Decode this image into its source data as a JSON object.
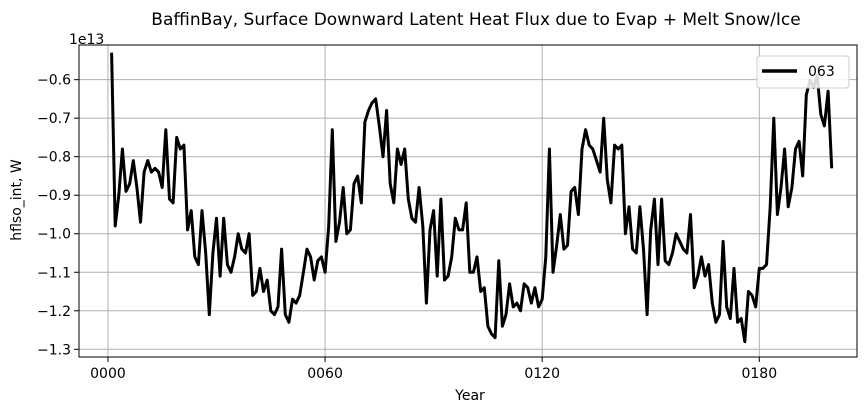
{
  "chart_data": {
    "type": "line",
    "title": "BaffinBay, Surface Downward Latent Heat Flux due to Evap + Melt Snow/Ice",
    "xlabel": "Year",
    "ylabel": "hflso_int, W",
    "y_offset_label": "1e13",
    "xlim": [
      -8,
      207
    ],
    "ylim": [
      -1.32,
      -0.51
    ],
    "x_ticks": [
      0,
      60,
      120,
      180
    ],
    "x_tick_labels": [
      "0000",
      "0060",
      "0120",
      "0180"
    ],
    "y_ticks": [
      -1.3,
      -1.2,
      -1.1,
      -1.0,
      -0.9,
      -0.8,
      -0.7,
      -0.6
    ],
    "y_tick_labels": [
      "−1.3",
      "−1.2",
      "−1.1",
      "−1.0",
      "−0.9",
      "−0.8",
      "−0.7",
      "−0.6"
    ],
    "grid": true,
    "legend_position": "top-right",
    "series": [
      {
        "name": "063",
        "color": "#000000",
        "x": [
          1,
          2,
          3,
          4,
          5,
          6,
          7,
          8,
          9,
          10,
          11,
          12,
          13,
          14,
          15,
          16,
          17,
          18,
          19,
          20,
          21,
          22,
          23,
          24,
          25,
          26,
          27,
          28,
          29,
          30,
          31,
          32,
          33,
          34,
          35,
          36,
          37,
          38,
          39,
          40,
          41,
          42,
          43,
          44,
          45,
          46,
          47,
          48,
          49,
          50,
          51,
          52,
          53,
          54,
          55,
          56,
          57,
          58,
          59,
          60,
          61,
          62,
          63,
          64,
          65,
          66,
          67,
          68,
          69,
          70,
          71,
          72,
          73,
          74,
          75,
          76,
          77,
          78,
          79,
          80,
          81,
          82,
          83,
          84,
          85,
          86,
          87,
          88,
          89,
          90,
          91,
          92,
          93,
          94,
          95,
          96,
          97,
          98,
          99,
          100,
          101,
          102,
          103,
          104,
          105,
          106,
          107,
          108,
          109,
          110,
          111,
          112,
          113,
          114,
          115,
          116,
          117,
          118,
          119,
          120,
          121,
          122,
          123,
          124,
          125,
          126,
          127,
          128,
          129,
          130,
          131,
          132,
          133,
          134,
          135,
          136,
          137,
          138,
          139,
          140,
          141,
          142,
          143,
          144,
          145,
          146,
          147,
          148,
          149,
          150,
          151,
          152,
          153,
          154,
          155,
          156,
          157,
          158,
          159,
          160,
          161,
          162,
          163,
          164,
          165,
          166,
          167,
          168,
          169,
          170,
          171,
          172,
          173,
          174,
          175,
          176,
          177,
          178,
          179,
          180,
          181,
          182,
          183,
          184,
          185,
          186,
          187,
          188,
          189,
          190,
          191,
          192,
          193,
          194,
          195,
          196,
          197,
          198,
          199,
          200
        ],
        "values": [
          -0.53,
          -0.98,
          -0.9,
          -0.78,
          -0.89,
          -0.87,
          -0.81,
          -0.88,
          -0.97,
          -0.84,
          -0.81,
          -0.84,
          -0.83,
          -0.84,
          -0.88,
          -0.73,
          -0.91,
          -0.92,
          -0.75,
          -0.78,
          -0.77,
          -0.99,
          -0.94,
          -1.06,
          -1.08,
          -0.94,
          -1.05,
          -1.21,
          -1.05,
          -0.96,
          -1.11,
          -0.96,
          -1.08,
          -1.1,
          -1.06,
          -1.0,
          -1.04,
          -1.05,
          -1.0,
          -1.16,
          -1.15,
          -1.09,
          -1.15,
          -1.12,
          -1.2,
          -1.21,
          -1.19,
          -1.04,
          -1.21,
          -1.23,
          -1.17,
          -1.18,
          -1.16,
          -1.1,
          -1.04,
          -1.06,
          -1.12,
          -1.07,
          -1.06,
          -1.1,
          -0.98,
          -0.73,
          -1.02,
          -0.97,
          -0.88,
          -1.0,
          -0.99,
          -0.87,
          -0.85,
          -0.92,
          -0.71,
          -0.68,
          -0.66,
          -0.65,
          -0.72,
          -0.8,
          -0.68,
          -0.87,
          -0.92,
          -0.78,
          -0.82,
          -0.78,
          -0.91,
          -0.96,
          -0.97,
          -0.88,
          -0.98,
          -1.18,
          -0.99,
          -0.94,
          -1.11,
          -0.91,
          -1.12,
          -1.11,
          -1.06,
          -0.96,
          -0.99,
          -0.99,
          -0.92,
          -1.1,
          -1.1,
          -1.06,
          -1.15,
          -1.14,
          -1.24,
          -1.26,
          -1.27,
          -1.07,
          -1.24,
          -1.21,
          -1.13,
          -1.19,
          -1.18,
          -1.2,
          -1.13,
          -1.14,
          -1.18,
          -1.14,
          -1.19,
          -1.17,
          -1.06,
          -0.78,
          -1.1,
          -1.03,
          -0.95,
          -1.04,
          -1.03,
          -0.89,
          -0.88,
          -0.95,
          -0.78,
          -0.73,
          -0.77,
          -0.78,
          -0.81,
          -0.84,
          -0.7,
          -0.86,
          -0.92,
          -0.77,
          -0.78,
          -0.77,
          -1.0,
          -0.93,
          -1.04,
          -1.05,
          -0.93,
          -1.04,
          -1.21,
          -0.99,
          -0.91,
          -1.08,
          -0.91,
          -1.07,
          -1.08,
          -1.05,
          -1.0,
          -1.02,
          -1.04,
          -1.05,
          -0.95,
          -1.14,
          -1.11,
          -1.06,
          -1.11,
          -1.08,
          -1.18,
          -1.23,
          -1.21,
          -1.02,
          -1.19,
          -1.22,
          -1.09,
          -1.23,
          -1.22,
          -1.28,
          -1.15,
          -1.16,
          -1.19,
          -1.09,
          -1.09,
          -1.08,
          -0.93,
          -0.7,
          -0.95,
          -0.88,
          -0.78,
          -0.93,
          -0.88,
          -0.78,
          -0.76,
          -0.85,
          -0.64,
          -0.6,
          -0.62,
          -0.59,
          -0.69,
          -0.72,
          -0.63,
          -0.83
        ]
      }
    ]
  }
}
